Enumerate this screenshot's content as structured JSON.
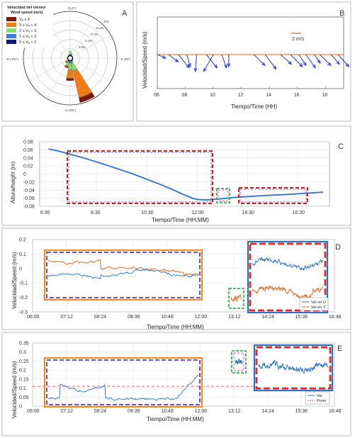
{
  "panel_letters": {
    "a": "A",
    "b": "B",
    "c": "C",
    "d": "D",
    "e": "E"
  },
  "chart_data": [
    {
      "id": "A",
      "type": "wind-rose",
      "legend_title": [
        "Velocidad del viento/",
        "Wind speed (m/s)"
      ],
      "legend": [
        {
          "label": "Vₐ ≥ 4",
          "color": "#7b1a0c"
        },
        {
          "label": "3 ≤ Vₐ < 4",
          "color": "#f07d0f"
        },
        {
          "label": "2 ≤ Vₐ < 3",
          "color": "#8cdc74"
        },
        {
          "label": "1 ≤ Vₐ < 2",
          "color": "#3b7ee0"
        },
        {
          "label": "0 ≤ Vₐ < 1",
          "color": "#0a1a7a"
        }
      ],
      "directions": [
        "N (0°)",
        "E (90°)",
        "S (180°)",
        "W (270°)"
      ],
      "ring_labels": [
        "5.8%",
        "11.6%",
        "17.4%",
        "23.2%",
        "29%"
      ],
      "petals": [
        {
          "angle": 0,
          "bands": [
            1.0,
            1.5,
            1.8,
            0,
            0
          ]
        },
        {
          "angle": 22.5,
          "bands": [
            1.0,
            1.2,
            0.5,
            0,
            0
          ]
        },
        {
          "angle": 45,
          "bands": [
            0.6,
            0.5,
            0,
            0,
            0
          ]
        },
        {
          "angle": 135,
          "bands": [
            0.6,
            0.7,
            0.6,
            0.4,
            0
          ]
        },
        {
          "angle": 157.5,
          "bands": [
            1.0,
            2.2,
            5.0,
            17.0,
            3.0
          ]
        },
        {
          "angle": 180,
          "bands": [
            1.0,
            2.0,
            4.2,
            5.5,
            1.3
          ]
        },
        {
          "angle": 202.5,
          "bands": [
            1.0,
            1.5,
            2.5,
            0.8,
            0.5
          ]
        },
        {
          "angle": 225,
          "bands": [
            0.8,
            1.0,
            0.8,
            0.8,
            0.3
          ]
        },
        {
          "angle": 270,
          "bands": [
            0.8,
            0.7,
            0,
            0,
            0
          ]
        },
        {
          "angle": 315,
          "bands": [
            0.8,
            1.0,
            0,
            0,
            0
          ]
        },
        {
          "angle": 337.5,
          "bands": [
            0.8,
            1.0,
            0.5,
            0,
            0
          ]
        }
      ]
    },
    {
      "id": "B",
      "type": "vector",
      "xlabel": "Tiempo/Time (HH)",
      "ylabel": "Velocidad/Speed (m/s)",
      "xlim": [
        6,
        19.3
      ],
      "xticks": [
        6,
        8,
        10,
        12,
        14,
        16,
        18
      ],
      "xtick_labels": [
        "06",
        "08",
        "10",
        "12",
        "14",
        "16",
        "18"
      ],
      "scale_label": "2 m/s",
      "vectors": [
        {
          "t": 6.0,
          "u": 0.7,
          "v": -0.3
        },
        {
          "t": 6.8,
          "u": 0.8,
          "v": -0.6
        },
        {
          "t": 7.5,
          "u": 0.9,
          "v": -1.1
        },
        {
          "t": 8.1,
          "u": 0.3,
          "v": -1.0
        },
        {
          "t": 8.8,
          "u": -0.1,
          "v": -1.4
        },
        {
          "t": 9.5,
          "u": 0.9,
          "v": -1.1
        },
        {
          "t": 10.0,
          "u": -0.8,
          "v": -1.4
        },
        {
          "t": 10.6,
          "u": 0.4,
          "v": -1.1
        },
        {
          "t": 11.1,
          "u": 0.0,
          "v": -1.0
        },
        {
          "t": 12.9,
          "u": 0.9,
          "v": -0.9
        },
        {
          "t": 13.7,
          "u": 0.9,
          "v": -1.2
        },
        {
          "t": 14.8,
          "u": 0.9,
          "v": -0.8
        },
        {
          "t": 15.5,
          "u": 1.0,
          "v": -1.0
        },
        {
          "t": 16.1,
          "u": 0.6,
          "v": -0.9
        },
        {
          "t": 16.6,
          "u": 0.8,
          "v": -1.1
        },
        {
          "t": 17.2,
          "u": 0.5,
          "v": -0.7
        },
        {
          "t": 17.6,
          "u": 0.9,
          "v": -0.9
        },
        {
          "t": 18.4,
          "u": 0.7,
          "v": -0.8
        },
        {
          "t": 18.9,
          "u": 0.9,
          "v": -1.0
        }
      ]
    },
    {
      "id": "C",
      "type": "line",
      "xlabel": "Tiempo/Time  (HH:MM)",
      "ylabel": "Altura/height (m)",
      "ylim": [
        -0.08,
        0.08
      ],
      "yticks": [
        -0.08,
        -0.06,
        -0.04,
        -0.02,
        0,
        0.02,
        0.04,
        0.06,
        0.08
      ],
      "ytick_labels": [
        "-0.08",
        "-0.06",
        "-0.04",
        "-0.02",
        "0",
        "0.02",
        "0.04",
        "0.06",
        "0.08"
      ],
      "xlim": [
        6.25,
        17.75
      ],
      "xticks": [
        6.5,
        8.5,
        10.5,
        12.5,
        14.5,
        16.5
      ],
      "xtick_labels": [
        "6:30",
        "8:30",
        "10:30",
        "12:30",
        "14:30",
        "16:30"
      ],
      "x": [
        6.6,
        7.0,
        8.0,
        9.0,
        10.0,
        11.0,
        11.5,
        12.0,
        12.3,
        12.5,
        12.7,
        13.0,
        13.5,
        14.0,
        15.0,
        16.0,
        17.0,
        17.5
      ],
      "y": [
        0.062,
        0.057,
        0.04,
        0.02,
        -0.001,
        -0.025,
        -0.038,
        -0.052,
        -0.06,
        -0.063,
        -0.064,
        -0.064,
        -0.061,
        -0.058,
        -0.054,
        -0.051,
        -0.047,
        -0.045
      ]
    },
    {
      "id": "D",
      "type": "line",
      "xlabel": "Tiempo/Time   (HH:MM)",
      "ylabel": "Velocidad/Speed (m/s)",
      "ylim": [
        -0.3,
        0.2
      ],
      "yticks": [
        -0.3,
        -0.2,
        -0.1,
        0,
        0.1,
        0.2
      ],
      "ytick_labels": [
        "-0.3",
        "-0.2",
        "-0.1",
        "0",
        "0.1",
        "0.2"
      ],
      "xlim": [
        6.0,
        16.8
      ],
      "xticks": [
        6.0,
        7.2,
        8.4,
        9.6,
        10.8,
        12.0,
        13.2,
        14.4,
        15.6,
        16.8
      ],
      "xtick_labels": [
        "06:00",
        "07:12",
        "08:24",
        "09:36",
        "10:48",
        "12:00",
        "13:12",
        "14:24",
        "15:36",
        "16:48"
      ],
      "legend": [
        "Vel en U",
        "Vel en V"
      ],
      "series": [
        {
          "name": "Vel en U",
          "color": "#2b73c2"
        },
        {
          "name": "Vel en V",
          "color": "#e0641e"
        }
      ]
    },
    {
      "id": "E",
      "type": "line",
      "xlabel": "Tiempo/Time   (HH:MM)",
      "ylabel": "Velocidad/Speed (m/s)",
      "ylim": [
        0,
        0.35
      ],
      "yticks": [
        0,
        0.05,
        0.1,
        0.15,
        0.2,
        0.25,
        0.3,
        0.35
      ],
      "ytick_labels": [
        "0",
        "0.05",
        "0.1",
        "0.15",
        "0.2",
        "0.25",
        "0.3",
        "0.35"
      ],
      "xlim": [
        6.0,
        16.8
      ],
      "xticks": [
        6.0,
        7.2,
        8.4,
        9.6,
        10.8,
        12.0,
        13.2,
        14.4,
        15.6,
        16.8
      ],
      "xtick_labels": [
        "06:00",
        "07:12",
        "08:24",
        "09:36",
        "10:48",
        "12:00",
        "13:12",
        "14:24",
        "15:36",
        "16:48"
      ],
      "mean_value": 0.11,
      "legend": [
        "Vel",
        "Prom"
      ],
      "series": [
        {
          "name": "Vel",
          "color": "#2b73c2"
        },
        {
          "name": "Prom",
          "color": "#e84a4a"
        }
      ]
    }
  ]
}
